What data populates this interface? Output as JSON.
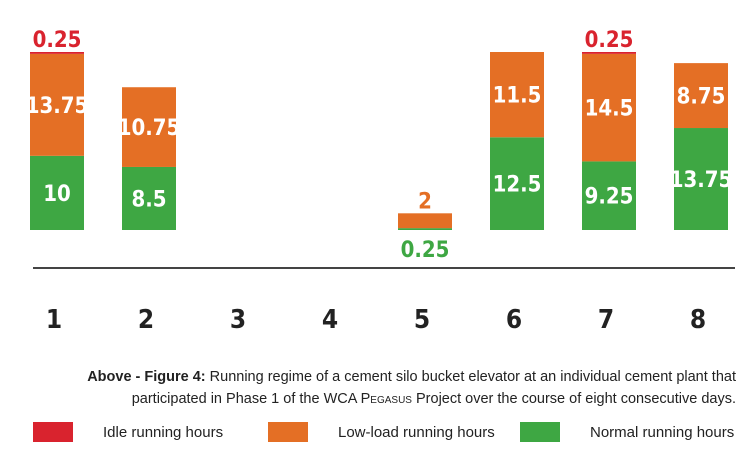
{
  "chart_data": {
    "type": "bar",
    "stacked": true,
    "categories": [
      "1",
      "2",
      "3",
      "4",
      "5",
      "6",
      "7",
      "8"
    ],
    "series": [
      {
        "name": "Normal running hours",
        "color": "#3ea743",
        "values": [
          10,
          8.5,
          0,
          0,
          0.25,
          12.5,
          9.25,
          13.75
        ]
      },
      {
        "name": "Low-load running hours",
        "color": "#e46f25",
        "values": [
          13.75,
          10.75,
          0,
          0,
          2,
          11.5,
          14.5,
          8.75
        ]
      },
      {
        "name": "Idle running hours",
        "color": "#d9232e",
        "values": [
          0.25,
          0,
          0,
          0,
          0,
          0,
          0.25,
          0
        ]
      }
    ],
    "ylim": [
      0,
      24
    ],
    "grid": false,
    "legend_placement": "bottom"
  },
  "caption": {
    "label": "Above - Figure 4:",
    "text1": " Running regime of a cement silo bucket elevator at an individual cement plant that participated in Phase 1 of the WCA ",
    "smallcaps": "Pegasus",
    "text2": " Project over the course of eight consecutive days."
  }
}
